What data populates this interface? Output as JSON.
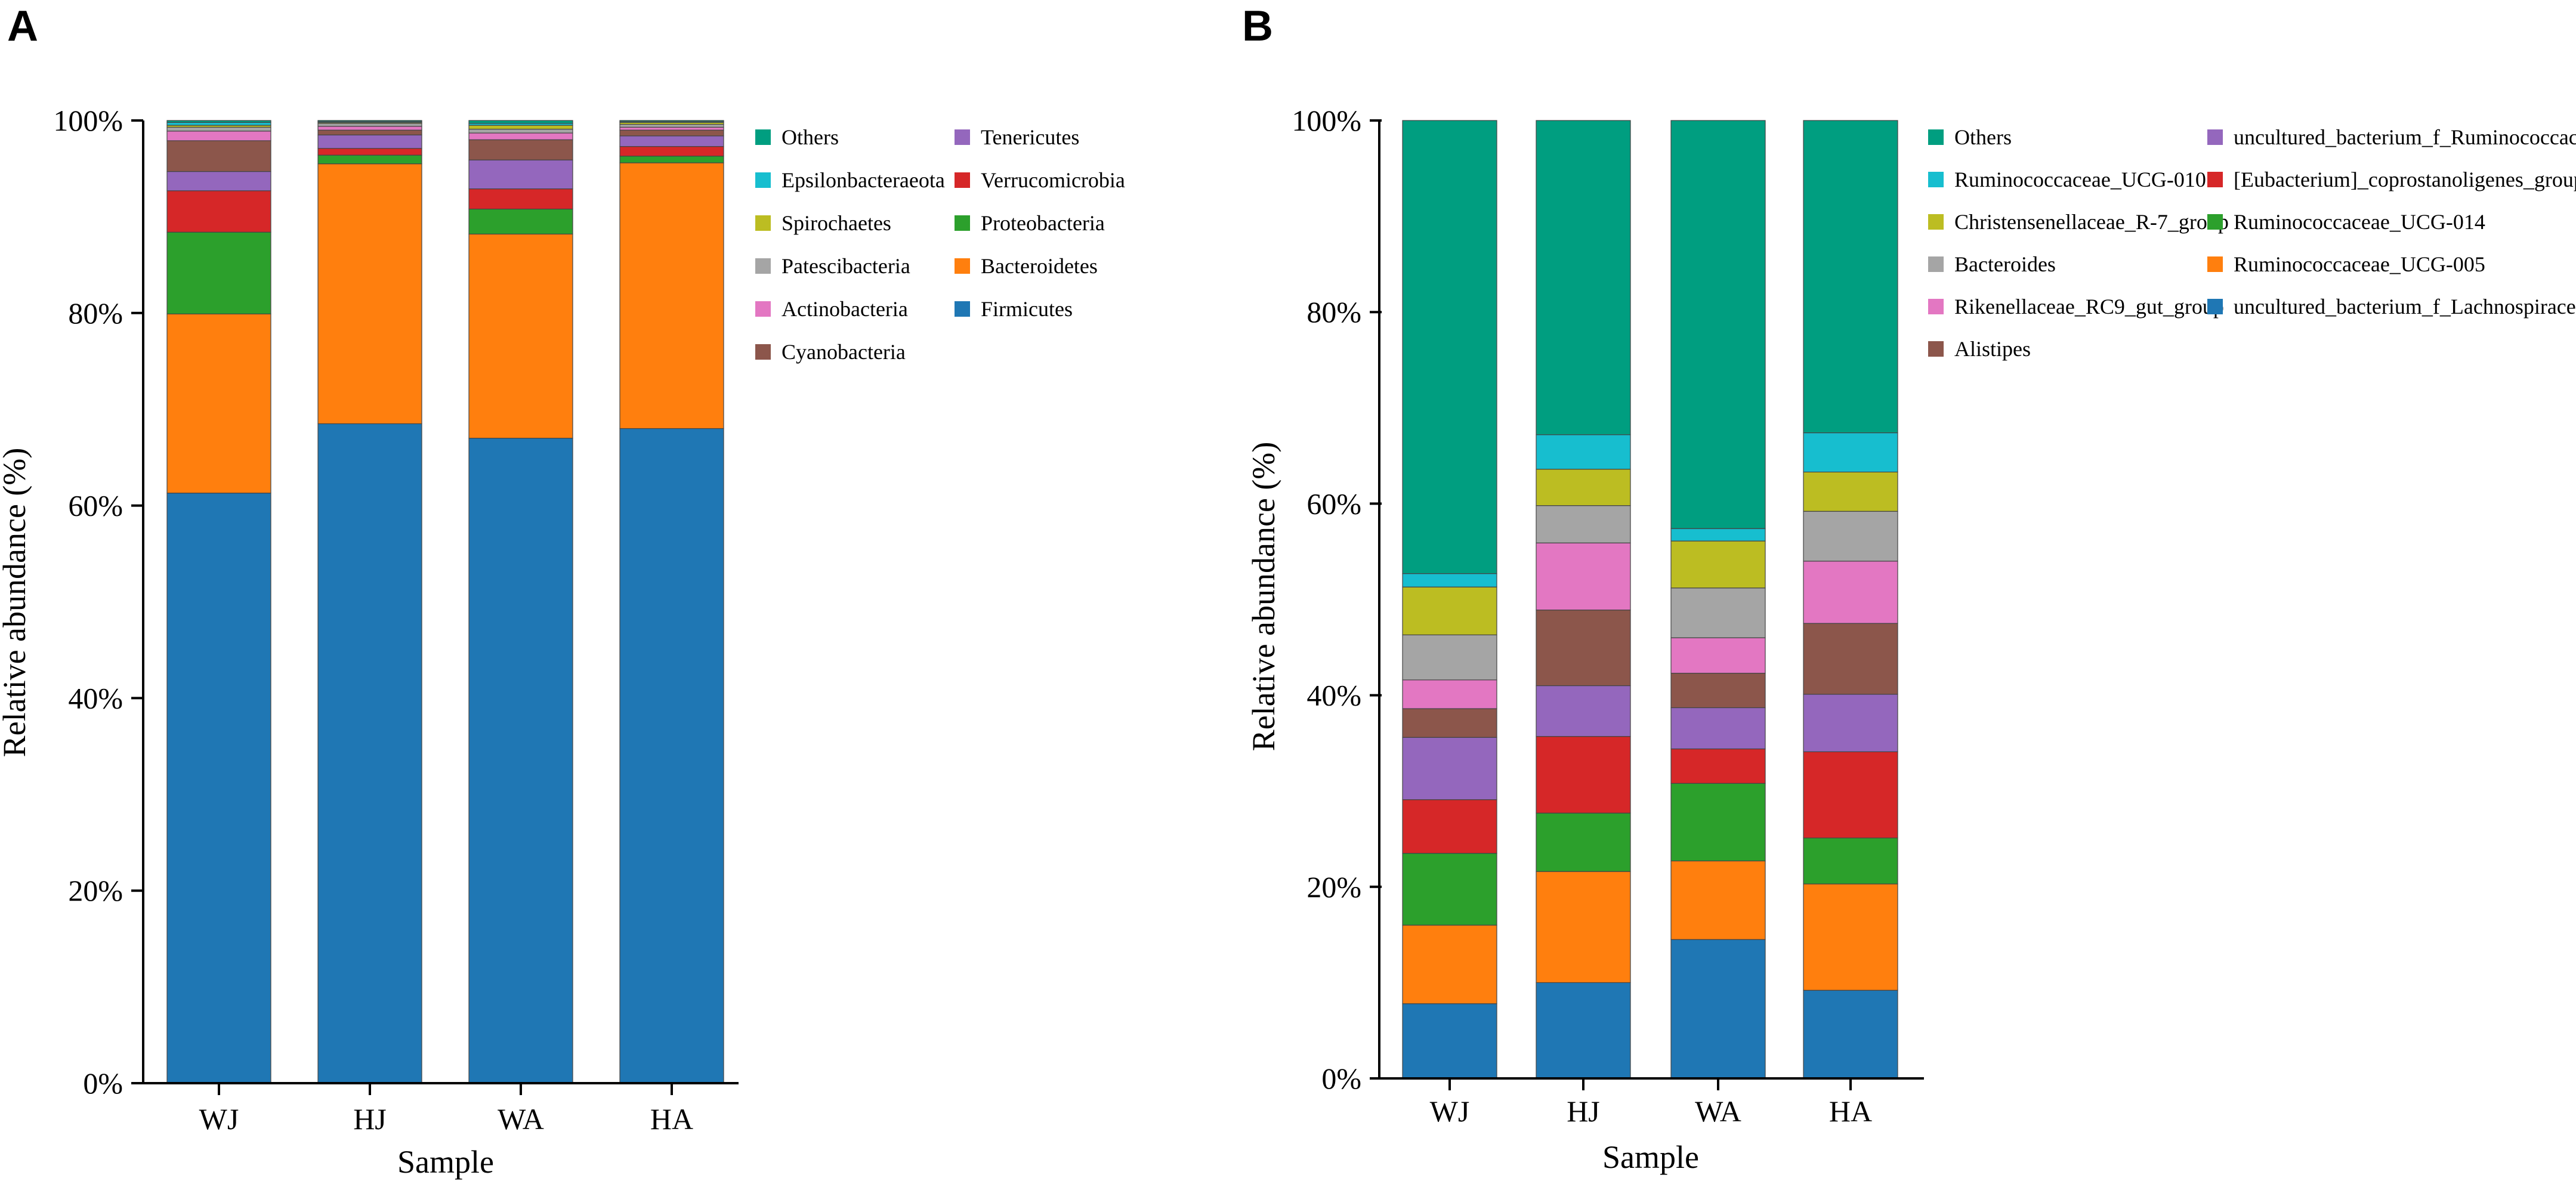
{
  "chart_data": [
    {
      "panel_label": "A",
      "type": "bar",
      "stacked": true,
      "xlabel": "Sample",
      "ylabel": "Relative abundance (%)",
      "ylim": [
        0,
        100
      ],
      "y_ticks": [
        "0%",
        "20%",
        "40%",
        "60%",
        "80%",
        "100%"
      ],
      "categories": [
        "WJ",
        "HJ",
        "WA",
        "HA"
      ],
      "series": [
        {
          "name": "Firmicutes",
          "color": "#1f77b4",
          "values": [
            61.3,
            68.5,
            67.0,
            68.0
          ]
        },
        {
          "name": "Bacteroidetes",
          "color": "#ff7f0e",
          "values": [
            18.6,
            27.0,
            21.2,
            27.6
          ]
        },
        {
          "name": "Proteobacteria",
          "color": "#2ca02c",
          "values": [
            8.5,
            0.9,
            2.6,
            0.7
          ]
        },
        {
          "name": "Verrucomicrobia",
          "color": "#d62728",
          "values": [
            4.3,
            0.7,
            2.1,
            1.0
          ]
        },
        {
          "name": "Tenericutes",
          "color": "#9467bd",
          "values": [
            2.0,
            1.4,
            3.0,
            1.1
          ]
        },
        {
          "name": "Cyanobacteria",
          "color": "#8c564b",
          "values": [
            3.2,
            0.5,
            2.1,
            0.6
          ]
        },
        {
          "name": "Actinobacteria",
          "color": "#e377c2",
          "values": [
            1.0,
            0.4,
            0.7,
            0.3
          ]
        },
        {
          "name": "Patescibacteria",
          "color": "#a5a5a5",
          "values": [
            0.4,
            0.3,
            0.4,
            0.3
          ]
        },
        {
          "name": "Spirochaetes",
          "color": "#bcbd22",
          "values": [
            0.2,
            0.1,
            0.4,
            0.2
          ]
        },
        {
          "name": "Epsilonbacteraeota",
          "color": "#17becf",
          "values": [
            0.3,
            0.1,
            0.2,
            0.1
          ]
        },
        {
          "name": "Others",
          "color": "#009e80",
          "values": [
            0.2,
            0.1,
            0.3,
            0.1
          ]
        }
      ],
      "legend_order": [
        "Others",
        "Tenericutes",
        "Epsilonbacteraeota",
        "Verrucomicrobia",
        "Spirochaetes",
        "Proteobacteria",
        "Patescibacteria",
        "Bacteroidetes",
        "Actinobacteria",
        "Firmicutes",
        "Cyanobacteria"
      ]
    },
    {
      "panel_label": "B",
      "type": "bar",
      "stacked": true,
      "xlabel": "Sample",
      "ylabel": "Relative abundance (%)",
      "ylim": [
        0,
        100
      ],
      "y_ticks": [
        "0%",
        "20%",
        "40%",
        "60%",
        "80%",
        "100%"
      ],
      "categories": [
        "WJ",
        "HJ",
        "WA",
        "HA"
      ],
      "series": [
        {
          "name": "uncultured_bacterium_f_Lachnospiraceae",
          "color": "#1f77b4",
          "values": [
            7.8,
            10.0,
            14.5,
            9.2
          ]
        },
        {
          "name": "Ruminococcaceae_UCG-005",
          "color": "#ff7f0e",
          "values": [
            8.2,
            11.6,
            8.2,
            11.1
          ]
        },
        {
          "name": "Ruminococcaceae_UCG-014",
          "color": "#2ca02c",
          "values": [
            7.5,
            6.1,
            8.1,
            4.8
          ]
        },
        {
          "name": "[Eubacterium]_coprostanoligenes_group",
          "color": "#d62728",
          "values": [
            5.6,
            8.0,
            3.6,
            9.0
          ]
        },
        {
          "name": "uncultured_bacterium_f_Ruminococcaceae",
          "color": "#9467bd",
          "values": [
            6.5,
            5.3,
            4.3,
            6.0
          ]
        },
        {
          "name": "Alistipes",
          "color": "#8c564b",
          "values": [
            3.0,
            7.9,
            3.6,
            7.4
          ]
        },
        {
          "name": "Rikenellaceae_RC9_gut_group",
          "color": "#e377c2",
          "values": [
            3.0,
            7.0,
            3.7,
            6.5
          ]
        },
        {
          "name": "Bacteroides",
          "color": "#a5a5a5",
          "values": [
            4.7,
            3.9,
            5.2,
            5.2
          ]
        },
        {
          "name": "Christensenellaceae_R-7_group",
          "color": "#bcbd22",
          "values": [
            5.0,
            3.8,
            4.9,
            4.1
          ]
        },
        {
          "name": "Ruminococcaceae_UCG-010",
          "color": "#17becf",
          "values": [
            1.4,
            3.6,
            1.3,
            4.1
          ]
        },
        {
          "name": "Others",
          "color": "#009e80",
          "values": [
            47.3,
            32.8,
            42.6,
            32.6
          ]
        }
      ],
      "legend_order": [
        "Others",
        "uncultured_bacterium_f_Ruminococcaceae",
        "Ruminococcaceae_UCG-010",
        "[Eubacterium]_coprostanoligenes_group",
        "Christensenellaceae_R-7_group",
        "Ruminococcaceae_UCG-014",
        "Bacteroides",
        "Ruminococcaceae_UCG-005",
        "Rikenellaceae_RC9_gut_group",
        "uncultured_bacterium_f_Lachnospiraceae",
        "Alistipes"
      ]
    }
  ]
}
